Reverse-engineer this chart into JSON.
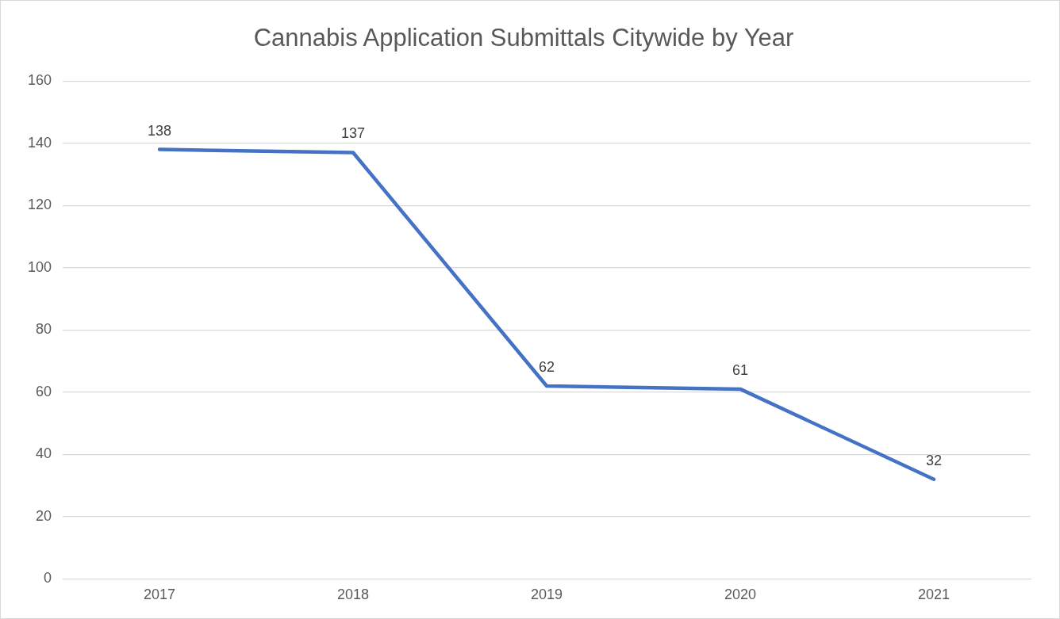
{
  "chart_data": {
    "type": "line",
    "title": "Cannabis Application Submittals Citywide by Year",
    "categories": [
      "2017",
      "2018",
      "2019",
      "2020",
      "2021"
    ],
    "series": [
      {
        "color": "#4472c4",
        "values": [
          138,
          137,
          62,
          61,
          32
        ]
      }
    ],
    "ylim": [
      0,
      160
    ],
    "yticks": [
      0,
      20,
      40,
      60,
      80,
      100,
      120,
      140,
      160
    ],
    "grid": "y",
    "legend": false,
    "marker": "none",
    "line_style": "solid",
    "data_labels": true
  }
}
